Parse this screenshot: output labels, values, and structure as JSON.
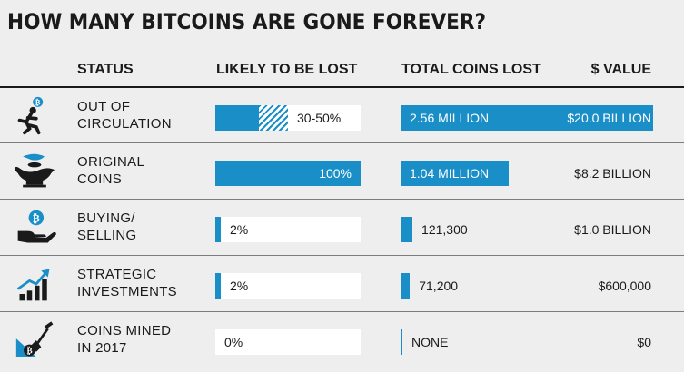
{
  "chart_data": {
    "type": "table",
    "title": "HOW MANY BITCOINS ARE GONE FOREVER?",
    "columns": [
      "STATUS",
      "LIKELY TO BE LOST",
      "TOTAL COINS LOST",
      "$ VALUE"
    ],
    "rows": [
      {
        "status": "Out of\nCirculation",
        "icon": "running-person-bitcoin-icon",
        "likely_text": "30-50%",
        "likely_min": 30,
        "likely_max": 50,
        "coins_text": "2.56 MILLION",
        "coins": 2560000,
        "value_text": "$20.0 BILLION",
        "value": 20000000000
      },
      {
        "status": "Original\nCoins",
        "icon": "genie-lamp-icon",
        "likely_text": "100%",
        "likely_min": 100,
        "likely_max": 100,
        "coins_text": "1.04 MILLION",
        "coins": 1040000,
        "value_text": "$8.2 BILLION",
        "value": 8200000000
      },
      {
        "status": "Buying/\nSelling",
        "icon": "hand-bitcoin-icon",
        "likely_text": "2%",
        "likely_min": 2,
        "likely_max": 2,
        "coins_text": "121,300",
        "coins": 121300,
        "value_text": "$1.0 BILLION",
        "value": 1000000000
      },
      {
        "status": "Strategic\nInvestments",
        "icon": "growth-chart-icon",
        "likely_text": "2%",
        "likely_min": 2,
        "likely_max": 2,
        "coins_text": "71,200",
        "coins": 71200,
        "value_text": "$600,000",
        "value": 600000
      },
      {
        "status": "Coins Mined\nin 2017",
        "icon": "shovel-bitcoin-icon",
        "likely_text": "0%",
        "likely_min": 0,
        "likely_max": 0,
        "coins_text": "NONE",
        "coins": 0,
        "value_text": "$0",
        "value": 0
      }
    ],
    "likely_max_scale": 100,
    "coins_max_scale": 2560000,
    "colors": {
      "bar": "#1a8fc7",
      "background": "#eeeeee",
      "box": "#ffffff"
    }
  }
}
